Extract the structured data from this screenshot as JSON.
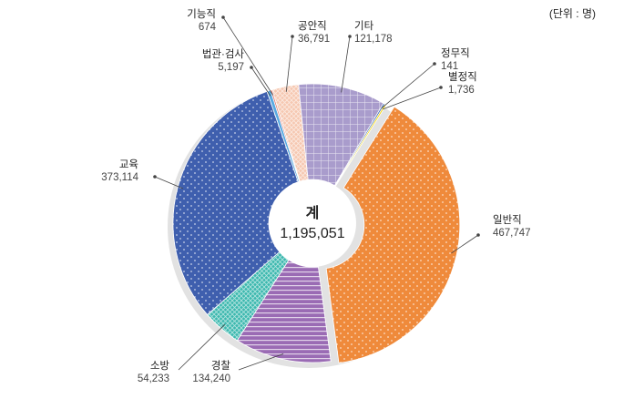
{
  "unit_note": "(단위 : 명)",
  "chart_data": {
    "type": "pie",
    "total_label": "계",
    "total_value": "1,195,051",
    "slices": [
      {
        "name": "일반직",
        "value": 467747,
        "value_label": "467,747",
        "color": "#ef8a3b",
        "pattern": "dots"
      },
      {
        "name": "경찰",
        "value": 134240,
        "value_label": "134,240",
        "color": "#9a6bb4",
        "pattern": "hlines"
      },
      {
        "name": "소방",
        "value": 54233,
        "value_label": "54,233",
        "color": "#3bb8ae",
        "pattern": "cross"
      },
      {
        "name": "교육",
        "value": 373114,
        "value_label": "373,114",
        "color": "#3f5fae",
        "pattern": "dots"
      },
      {
        "name": "법관·검사",
        "value": 5197,
        "value_label": "5,197",
        "color": "#5aa9e0",
        "pattern": "none"
      },
      {
        "name": "기능직",
        "value": 674,
        "value_label": "674",
        "color": "#e57b6e",
        "pattern": "none"
      },
      {
        "name": "공안직",
        "value": 36791,
        "value_label": "36,791",
        "color": "#f6c7b0",
        "pattern": "cross"
      },
      {
        "name": "기타",
        "value": 121178,
        "value_label": "121,178",
        "color": "#a99ccc",
        "pattern": "grid"
      },
      {
        "name": "정무직",
        "value": 141,
        "value_label": "141",
        "color": "#3a6ab5",
        "pattern": "none"
      },
      {
        "name": "별정직",
        "value": 1736,
        "value_label": "1,736",
        "color": "#f2d200",
        "pattern": "none"
      }
    ]
  }
}
